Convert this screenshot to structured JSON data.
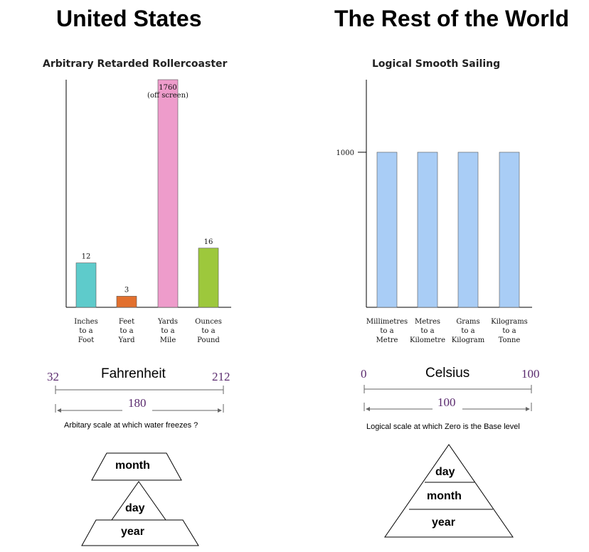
{
  "headings": {
    "left": "United States",
    "right": "The Rest of the World"
  },
  "colors": {
    "teal": "#5ecbcb",
    "orange": "#e2702e",
    "pink": "#ee9ccb",
    "green": "#9dc83c",
    "light_blue": "#a9cdf6",
    "scale_text": "#5a2a6e"
  },
  "chart_data": [
    {
      "type": "bar",
      "title": "Arbitrary Retarded Rollercoaster",
      "categories": [
        [
          "Inches",
          "to a",
          "Foot"
        ],
        [
          "Feet",
          "to a",
          "Yard"
        ],
        [
          "Yards",
          "to a",
          "Mile"
        ],
        [
          "Ounces",
          "to a",
          "Pound"
        ]
      ],
      "values": [
        12,
        3,
        1760,
        16
      ],
      "data_labels": [
        "12",
        "3",
        "1760",
        "16"
      ],
      "off_screen_note": "(off screen)",
      "bar_colors": [
        "#5ecbcb",
        "#e2702e",
        "#ee9ccb",
        "#9dc83c"
      ],
      "ylim": [
        0,
        60
      ],
      "grid": false
    },
    {
      "type": "bar",
      "title": "Logical Smooth Sailing",
      "categories": [
        [
          "Millimetres",
          "to a",
          "Metre"
        ],
        [
          "Metres",
          "to a",
          "Kilometre"
        ],
        [
          "Grams",
          "to a",
          "Kilogram"
        ],
        [
          "Kilograms",
          "to a",
          "Tonne"
        ]
      ],
      "values": [
        1000,
        1000,
        1000,
        1000
      ],
      "yticks": [
        "1000"
      ],
      "bar_colors": [
        "#a9cdf6",
        "#a9cdf6",
        "#a9cdf6",
        "#a9cdf6"
      ],
      "ylim": [
        0,
        1320
      ],
      "grid": false
    }
  ],
  "scales": {
    "left": {
      "name": "Fahrenheit",
      "low": "32",
      "high": "212",
      "span": "180",
      "caption": "Arbitary scale at which water freezes ?"
    },
    "right": {
      "name": "Celsius",
      "low": "0",
      "high": "100",
      "span": "100",
      "caption": "Logical scale at which Zero is the Base level"
    }
  },
  "date_order": {
    "left": [
      "month",
      "day",
      "year"
    ],
    "right": [
      "day",
      "month",
      "year"
    ]
  }
}
